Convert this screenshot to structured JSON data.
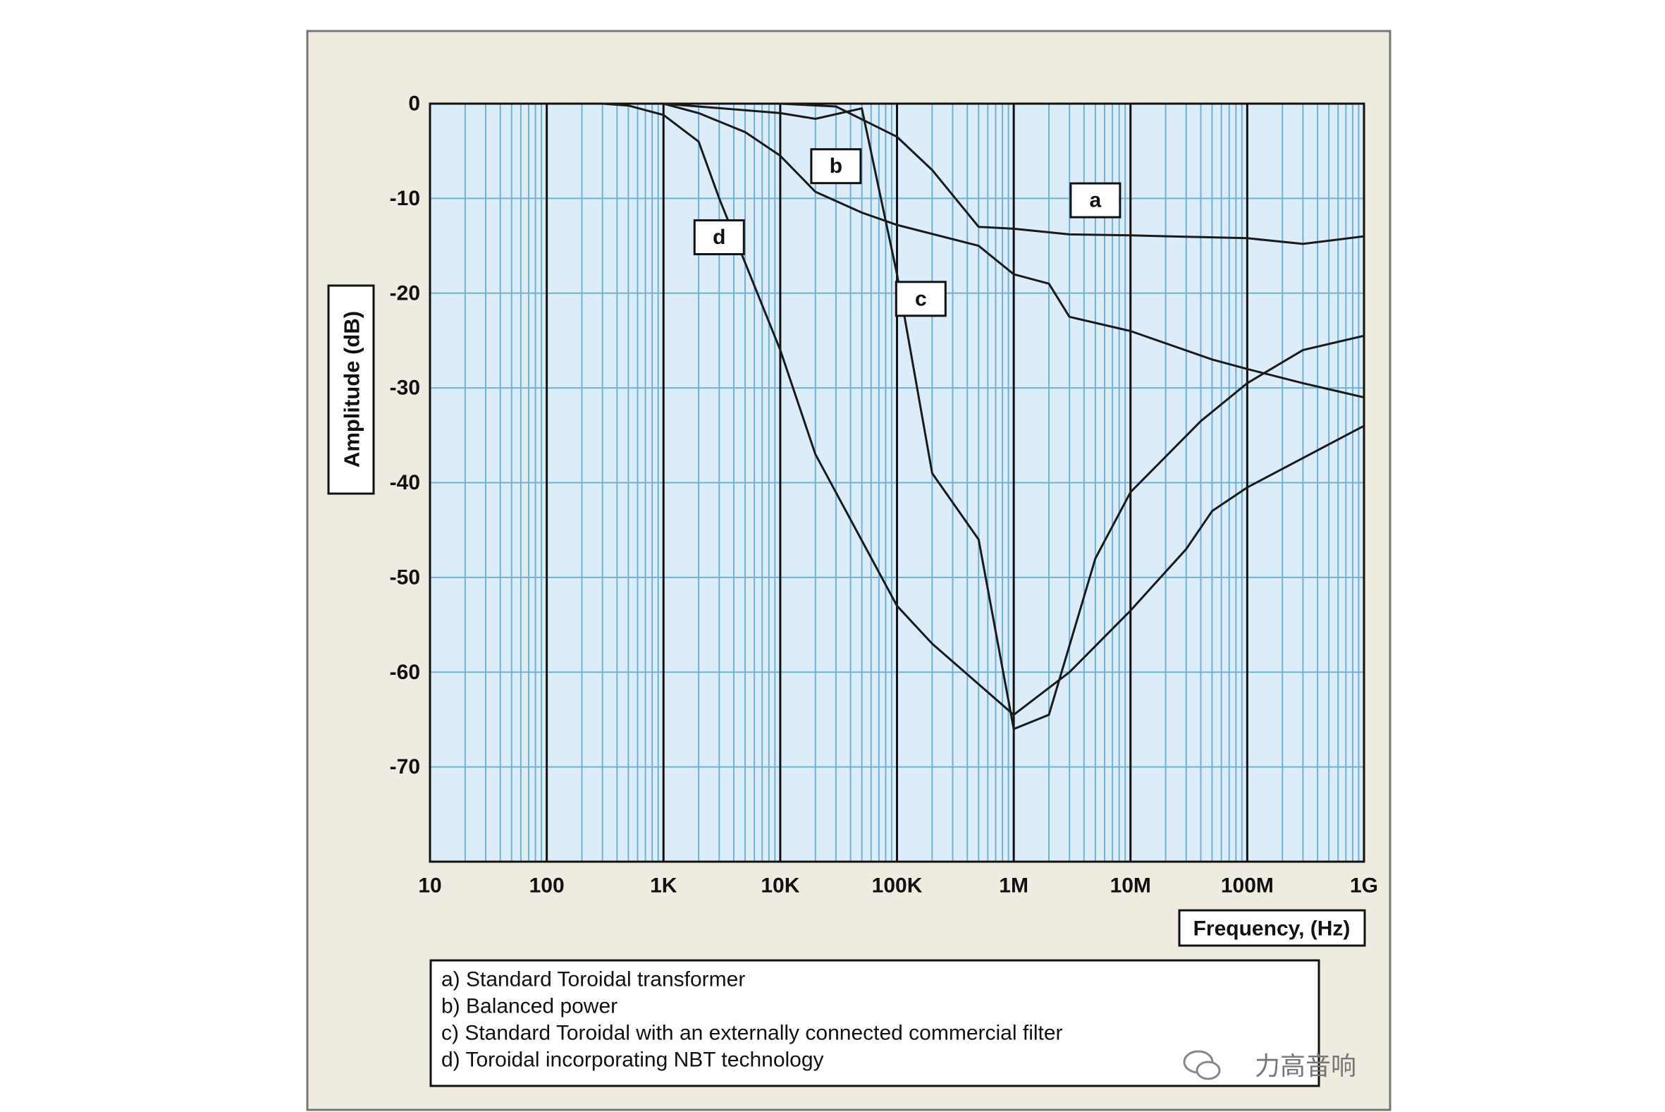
{
  "chart_data": {
    "type": "line",
    "x_scale": "log",
    "xlim": [
      10,
      1000000000
    ],
    "ylim": [
      -80,
      0
    ],
    "grid": true,
    "ylabel": "Amplitude (dB)",
    "xlabel": "Frequency, (Hz)",
    "y_ticks": [
      {
        "v": 0,
        "label": "0"
      },
      {
        "v": -10,
        "label": "-10"
      },
      {
        "v": -20,
        "label": "-20"
      },
      {
        "v": -30,
        "label": "-30"
      },
      {
        "v": -40,
        "label": "-40"
      },
      {
        "v": -50,
        "label": "-50"
      },
      {
        "v": -60,
        "label": "-60"
      },
      {
        "v": -70,
        "label": "-70"
      }
    ],
    "x_ticks": [
      {
        "v": 10,
        "label": "10"
      },
      {
        "v": 100,
        "label": "100"
      },
      {
        "v": 1000,
        "label": "1K"
      },
      {
        "v": 10000,
        "label": "10K"
      },
      {
        "v": 100000,
        "label": "100K"
      },
      {
        "v": 1000000,
        "label": "1M"
      },
      {
        "v": 10000000,
        "label": "10M"
      },
      {
        "v": 100000000,
        "label": "100M"
      },
      {
        "v": 1000000000,
        "label": "1G"
      }
    ],
    "series": [
      {
        "name": "a",
        "points": [
          [
            10000,
            0
          ],
          [
            30000,
            -0.3
          ],
          [
            100000,
            -3.5
          ],
          [
            200000,
            -7
          ],
          [
            500000,
            -13
          ],
          [
            1000000,
            -13.2
          ],
          [
            3000000,
            -13.8
          ],
          [
            10000000,
            -13.9
          ],
          [
            100000000,
            -14.2
          ],
          [
            300000000,
            -14.8
          ],
          [
            1000000000,
            -14
          ]
        ]
      },
      {
        "name": "b",
        "points": [
          [
            1000,
            0
          ],
          [
            2000,
            -1
          ],
          [
            5000,
            -3
          ],
          [
            10000,
            -5.5
          ],
          [
            20000,
            -9.3
          ],
          [
            50000,
            -11.5
          ],
          [
            100000,
            -12.8
          ],
          [
            500000,
            -15
          ],
          [
            1000000,
            -18
          ],
          [
            2000000,
            -19
          ],
          [
            3000000,
            -22.5
          ],
          [
            10000000,
            -24
          ],
          [
            50000000,
            -27
          ],
          [
            100000000,
            -28
          ],
          [
            300000000,
            -29.5
          ],
          [
            1000000000,
            -31
          ]
        ]
      },
      {
        "name": "c",
        "points": [
          [
            1000,
            0
          ],
          [
            10000,
            -1
          ],
          [
            20000,
            -1.6
          ],
          [
            50000,
            -0.5
          ],
          [
            100000,
            -18
          ],
          [
            200000,
            -39
          ],
          [
            500000,
            -46
          ],
          [
            1000000,
            -66
          ],
          [
            2000000,
            -64.5
          ],
          [
            5000000,
            -48
          ],
          [
            10000000,
            -41
          ],
          [
            40000000,
            -33.5
          ],
          [
            100000000,
            -29.5
          ],
          [
            300000000,
            -26
          ],
          [
            1000000000,
            -24.5
          ]
        ]
      },
      {
        "name": "d",
        "points": [
          [
            300,
            0
          ],
          [
            500,
            -0.2
          ],
          [
            1000,
            -1.2
          ],
          [
            2000,
            -4
          ],
          [
            3000,
            -10
          ],
          [
            10000,
            -26
          ],
          [
            20000,
            -37
          ],
          [
            100000,
            -53
          ],
          [
            200000,
            -57
          ],
          [
            1000000,
            -64.5
          ],
          [
            3000000,
            -60
          ],
          [
            10000000,
            -53.5
          ],
          [
            30000000,
            -47
          ],
          [
            50000000,
            -43
          ],
          [
            100000000,
            -40.5
          ],
          [
            1000000000,
            -34
          ]
        ]
      }
    ],
    "curve_labels": [
      {
        "name": "a",
        "x": 5000000,
        "y": -10.2
      },
      {
        "name": "b",
        "x": 30000,
        "y": -6.6
      },
      {
        "name": "c",
        "x": 160000,
        "y": -20.6
      },
      {
        "name": "d",
        "x": 3000,
        "y": -14.1
      }
    ],
    "legend": {
      "position": "bottom",
      "entries": [
        "a) Standard Toroidal transformer",
        "b) Balanced power",
        "c) Standard Toroidal with an externally connected commercial filter",
        "d) Toroidal incorporating NBT technology"
      ]
    },
    "colors": {
      "panel": "#efebe1",
      "plot_bg": "#dcecf8",
      "minor_grid": "#6fb1d8",
      "major_grid": "#111111",
      "line": "#1a1a1a"
    }
  },
  "watermark": {
    "text": "力高音响",
    "icon": "wechat-icon"
  }
}
